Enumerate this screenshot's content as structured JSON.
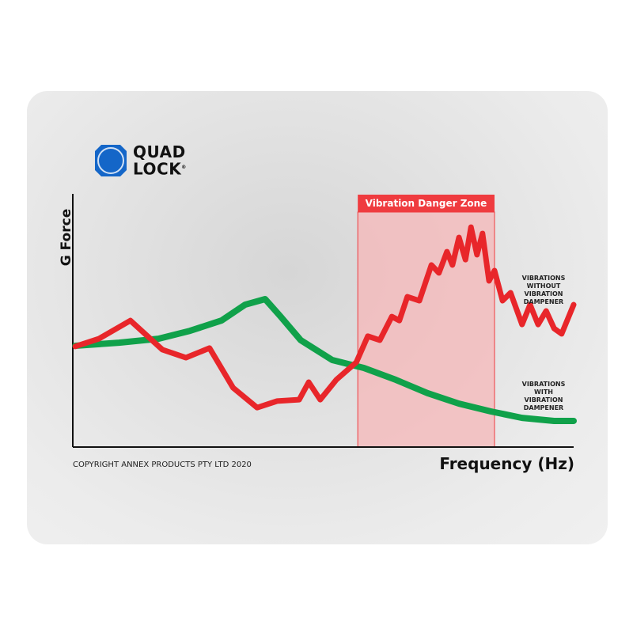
{
  "brand": {
    "logo_line1": "QUAD",
    "logo_line2": "LOCK",
    "logo_icon": "quad-lock-mount-icon",
    "registered": "®"
  },
  "copyright": "COPYRIGHT ANNEX PRODUCTS PTY LTD 2020",
  "colors": {
    "red": "#e8262a",
    "green": "#10a14a",
    "zone_fill": "#f6b7b8",
    "zone_header": "#ef3b3f",
    "logo_blue": "#1466c8"
  },
  "chart_data": {
    "type": "line",
    "title": "",
    "xlabel": "Frequency (Hz)",
    "ylabel": "G Force",
    "xlim": [
      0,
      100
    ],
    "ylim": [
      0,
      100
    ],
    "grid": false,
    "tick_labels": false,
    "annotations": {
      "danger_zone": {
        "label": "Vibration Danger Zone",
        "x_range": [
          56.9,
          84.2
        ]
      }
    },
    "series": [
      {
        "name": "VIBRATIONS WITHOUT VIBRATION DAMPENER",
        "color": "#e8262a",
        "points": [
          [
            0.5,
            43.1
          ],
          [
            5.2,
            46.4
          ],
          [
            11.5,
            54.2
          ],
          [
            17.9,
            41.7
          ],
          [
            22.6,
            38.3
          ],
          [
            27.3,
            42.4
          ],
          [
            32.0,
            25.4
          ],
          [
            36.8,
            16.9
          ],
          [
            40.8,
            19.7
          ],
          [
            45.2,
            20.3
          ],
          [
            47.1,
            27.8
          ],
          [
            49.4,
            20.3
          ],
          [
            52.6,
            28.8
          ],
          [
            56.6,
            36.3
          ],
          [
            58.9,
            47.5
          ],
          [
            61.3,
            45.8
          ],
          [
            63.7,
            55.9
          ],
          [
            65.2,
            54.2
          ],
          [
            66.8,
            64.4
          ],
          [
            69.2,
            62.7
          ],
          [
            71.6,
            78.0
          ],
          [
            73.1,
            74.6
          ],
          [
            74.7,
            83.7
          ],
          [
            75.8,
            78.0
          ],
          [
            77.1,
            89.8
          ],
          [
            78.4,
            80.3
          ],
          [
            79.5,
            94.2
          ],
          [
            80.7,
            82.4
          ],
          [
            81.8,
            91.5
          ],
          [
            83.1,
            71.2
          ],
          [
            84.2,
            75.6
          ],
          [
            85.8,
            62.7
          ],
          [
            87.4,
            66.1
          ],
          [
            89.7,
            52.5
          ],
          [
            91.3,
            61.0
          ],
          [
            92.9,
            52.5
          ],
          [
            94.5,
            58.3
          ],
          [
            96.1,
            50.8
          ],
          [
            97.6,
            48.5
          ],
          [
            100,
            61.0
          ]
        ]
      },
      {
        "name": "VIBRATIONS WITH VIBRATION DAMPENER",
        "color": "#10a14a",
        "points": [
          [
            0.5,
            43.4
          ],
          [
            9.2,
            44.7
          ],
          [
            17.1,
            46.4
          ],
          [
            23.4,
            49.8
          ],
          [
            29.7,
            54.2
          ],
          [
            34.4,
            61.0
          ],
          [
            38.4,
            63.4
          ],
          [
            41.5,
            55.9
          ],
          [
            45.5,
            45.8
          ],
          [
            51.8,
            37.3
          ],
          [
            58.1,
            33.9
          ],
          [
            64.5,
            28.8
          ],
          [
            70.8,
            23.1
          ],
          [
            77.1,
            18.6
          ],
          [
            83.4,
            15.3
          ],
          [
            89.7,
            12.5
          ],
          [
            96.1,
            11.2
          ],
          [
            100,
            11.2
          ]
        ]
      }
    ],
    "legend_labels": {
      "without": [
        "VIBRATIONS",
        "WITHOUT",
        "VIBRATION",
        "DAMPENER"
      ],
      "with": [
        "VIBRATIONS",
        "WITH",
        "VIBRATION",
        "DAMPENER"
      ]
    }
  }
}
